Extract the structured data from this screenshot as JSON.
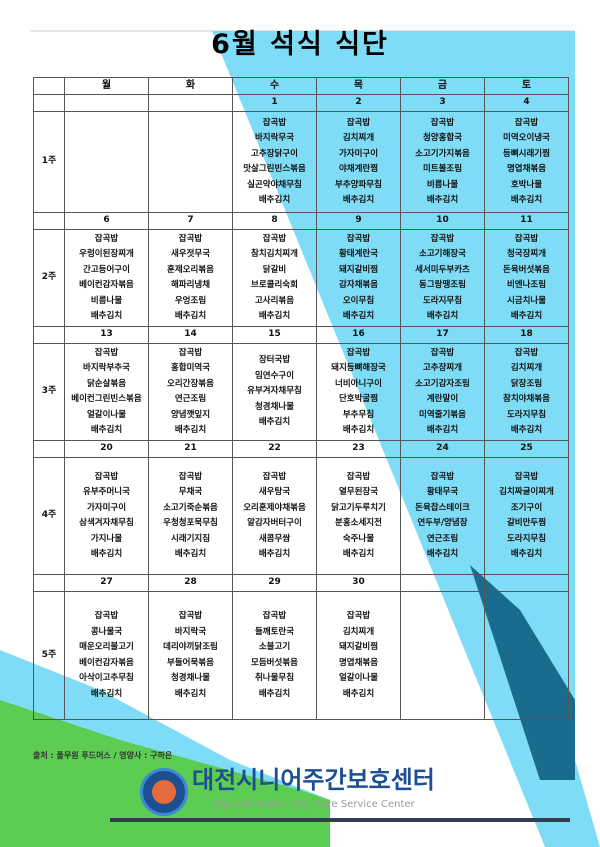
{
  "title": "6월 석식 식단",
  "colors": {
    "accent_blue": "#7fdcf6",
    "dark_teal": "#1a6c8f",
    "green": "#5ccc52",
    "brand_blue": "#1f4f93"
  },
  "days": [
    "월",
    "화",
    "수",
    "목",
    "금",
    "토"
  ],
  "weeks": [
    {
      "label": "1주",
      "dates": [
        "",
        "",
        "1",
        "2",
        "3",
        "4"
      ],
      "menus": [
        [],
        [],
        [
          "잡곡밥",
          "바지락무국",
          "고추장닭구이",
          "맛살그린빈스볶음",
          "실곤약야채무침",
          "배추김치"
        ],
        [
          "잡곡밥",
          "김치찌개",
          "가자미구이",
          "야채계란찜",
          "부추양파무침",
          "배추김치"
        ],
        [
          "잡곡밥",
          "청양홍합국",
          "소고기가지볶음",
          "미트볼조림",
          "비름나물",
          "배추김치"
        ],
        [
          "잡곡밥",
          "미역오이냉국",
          "등뼈시래기찜",
          "명엽채볶음",
          "호박나물",
          "배추김치"
        ]
      ]
    },
    {
      "label": "2주",
      "dates": [
        "6",
        "7",
        "8",
        "9",
        "10",
        "11"
      ],
      "menus": [
        [
          "잡곡밥",
          "우렁이된장찌개",
          "간고등어구이",
          "베이컨감자볶음",
          "비름나물",
          "배추김치"
        ],
        [
          "잡곡밥",
          "새우젓무국",
          "훈제오리볶음",
          "해파리냉채",
          "우엉조림",
          "배추김치"
        ],
        [
          "잡곡밥",
          "참치김치찌개",
          "닭갈비",
          "브로콜리숙회",
          "고사리볶음",
          "배추김치"
        ],
        [
          "잡곡밥",
          "황태계란국",
          "돼지갈비찜",
          "감자채볶음",
          "오이무침",
          "배추김치"
        ],
        [
          "잡곡밥",
          "소고기해장국",
          "세서미두부카츠",
          "동그랑땡조림",
          "도라지무침",
          "배추김치"
        ],
        [
          "잡곡밥",
          "청국장찌개",
          "돈육버섯볶음",
          "비엔나조림",
          "시금치나물",
          "배추김치"
        ]
      ]
    },
    {
      "label": "3주",
      "dates": [
        "13",
        "14",
        "15",
        "16",
        "17",
        "18"
      ],
      "menus": [
        [
          "잡곡밥",
          "바지락부추국",
          "닭순살볶음",
          "베이컨그린빈스볶음",
          "얼갈이나물",
          "배추김치"
        ],
        [
          "잡곡밥",
          "홍합미역국",
          "오리간장볶음",
          "연근조림",
          "양념깻잎지",
          "배추김치"
        ],
        [
          "장터국밥",
          "임연수구이",
          "유부겨자채무침",
          "청경채나물",
          "배추김치"
        ],
        [
          "잡곡밥",
          "돼지등뼈해장국",
          "너비아니구이",
          "단호박굴찜",
          "부추무침",
          "배추김치"
        ],
        [
          "잡곡밥",
          "고추장찌개",
          "소고기감자조림",
          "계란말이",
          "미역줄기볶음",
          "배추김치"
        ],
        [
          "잡곡밥",
          "김치찌개",
          "닭장조림",
          "참치야채볶음",
          "도라지무침",
          "배추김치"
        ]
      ]
    },
    {
      "label": "4주",
      "dates": [
        "20",
        "21",
        "22",
        "23",
        "24",
        "25"
      ],
      "menus": [
        [
          "잡곡밥",
          "유부주머니국",
          "가자미구이",
          "삼색겨자채무침",
          "가지나물",
          "배추김치"
        ],
        [
          "잡곡밥",
          "무채국",
          "소고기죽순볶음",
          "우청청포묵무침",
          "시래기지짐",
          "배추김치"
        ],
        [
          "잡곡밥",
          "새우탕국",
          "오리훈제야채볶음",
          "알감자버터구이",
          "새콤무쌈",
          "배추김치"
        ],
        [
          "잡곡밥",
          "열무된장국",
          "닭고기두루치기",
          "분홍소세지전",
          "숙주나물",
          "배추김치"
        ],
        [
          "잡곡밥",
          "황태무국",
          "돈육찹스테이크",
          "연두부/양념장",
          "연근조림",
          "배추김치"
        ],
        [
          "잡곡밥",
          "김치짜글이찌개",
          "조기구이",
          "갈비만두찜",
          "도라지무침",
          "배추김치"
        ]
      ]
    },
    {
      "label": "5주",
      "dates": [
        "27",
        "28",
        "29",
        "30",
        "",
        ""
      ],
      "menus": [
        [
          "잡곡밥",
          "콩나물국",
          "매운오리불고기",
          "베이컨감자볶음",
          "아삭이고추무침",
          "배추김치"
        ],
        [
          "잡곡밥",
          "바지락국",
          "데리야끼닭조림",
          "부들어묵볶음",
          "청경채나물",
          "배추김치"
        ],
        [
          "잡곡밥",
          "들깨토란국",
          "소불고기",
          "모듬버섯볶음",
          "취나물무침",
          "배추김치"
        ],
        [
          "잡곡밥",
          "김치찌개",
          "돼지갈비찜",
          "명엽채볶음",
          "얼갈이나물",
          "배추김치"
        ],
        [],
        []
      ]
    }
  ],
  "footer": {
    "source": "출처 : 풀무원 푸드머스",
    "nutritionist": "영양사 : 구하은",
    "brand_name": "대전시니어주간보호센터",
    "brand_english": "Daejeon Senior Day Care Service Center"
  }
}
